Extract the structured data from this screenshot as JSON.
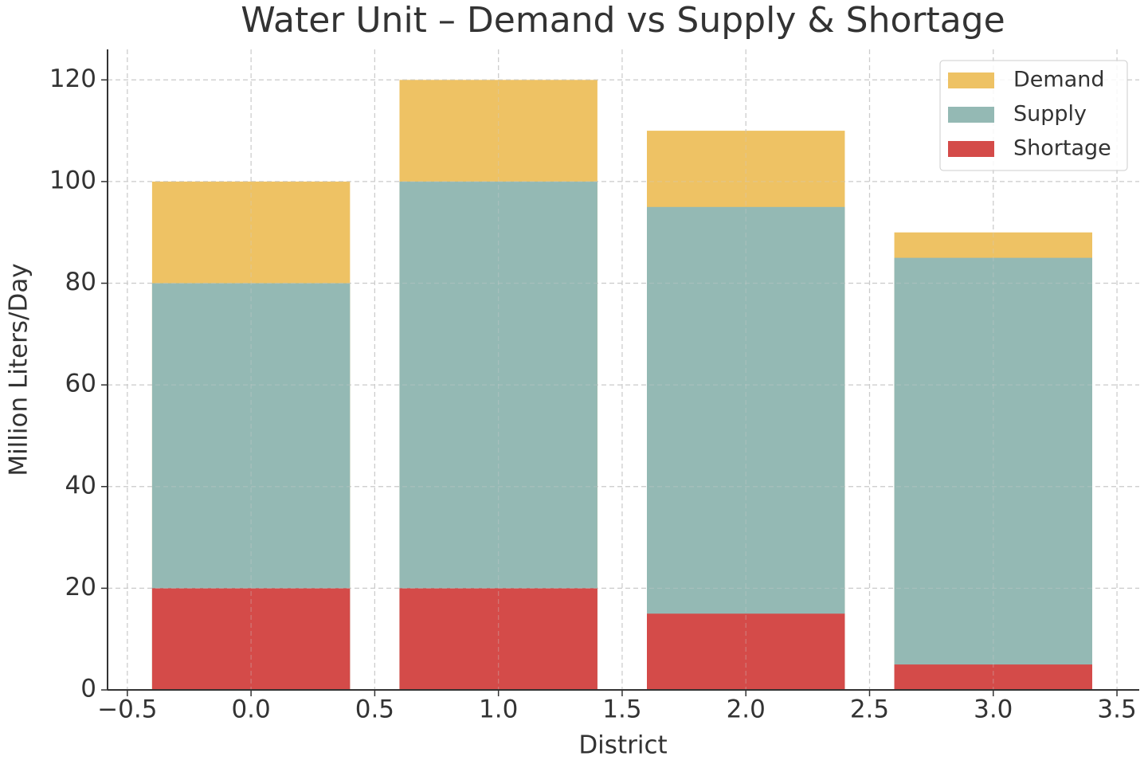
{
  "chart_data": {
    "type": "bar",
    "overlap": true,
    "title": "Water Unit – Demand vs Supply & Shortage",
    "xlabel": "District",
    "ylabel": "Million Liters/Day",
    "x": [
      0,
      1,
      2,
      3
    ],
    "bar_width": 0.8,
    "series": [
      {
        "name": "Demand",
        "color": "#eec264",
        "values": [
          100,
          120,
          110,
          90
        ]
      },
      {
        "name": "Supply",
        "color": "#94b9b4",
        "values": [
          80,
          100,
          95,
          85
        ]
      },
      {
        "name": "Shortage",
        "color": "#d44b49",
        "values": [
          20,
          20,
          15,
          5
        ]
      }
    ],
    "xlim": [
      -0.58,
      3.59
    ],
    "xticks": [
      {
        "value": -0.5,
        "label": "−0.5"
      },
      {
        "value": 0,
        "label": "0.0"
      },
      {
        "value": 0.5,
        "label": "0.5"
      },
      {
        "value": 1,
        "label": "1.0"
      },
      {
        "value": 1.5,
        "label": "1.5"
      },
      {
        "value": 2,
        "label": "2.0"
      },
      {
        "value": 2.5,
        "label": "2.5"
      },
      {
        "value": 3,
        "label": "3.0"
      },
      {
        "value": 3.5,
        "label": "3.5"
      }
    ],
    "ylim": [
      0,
      126
    ],
    "yticks": [
      0,
      20,
      40,
      60,
      80,
      100,
      120
    ],
    "grid": true,
    "legend": "upper right"
  }
}
